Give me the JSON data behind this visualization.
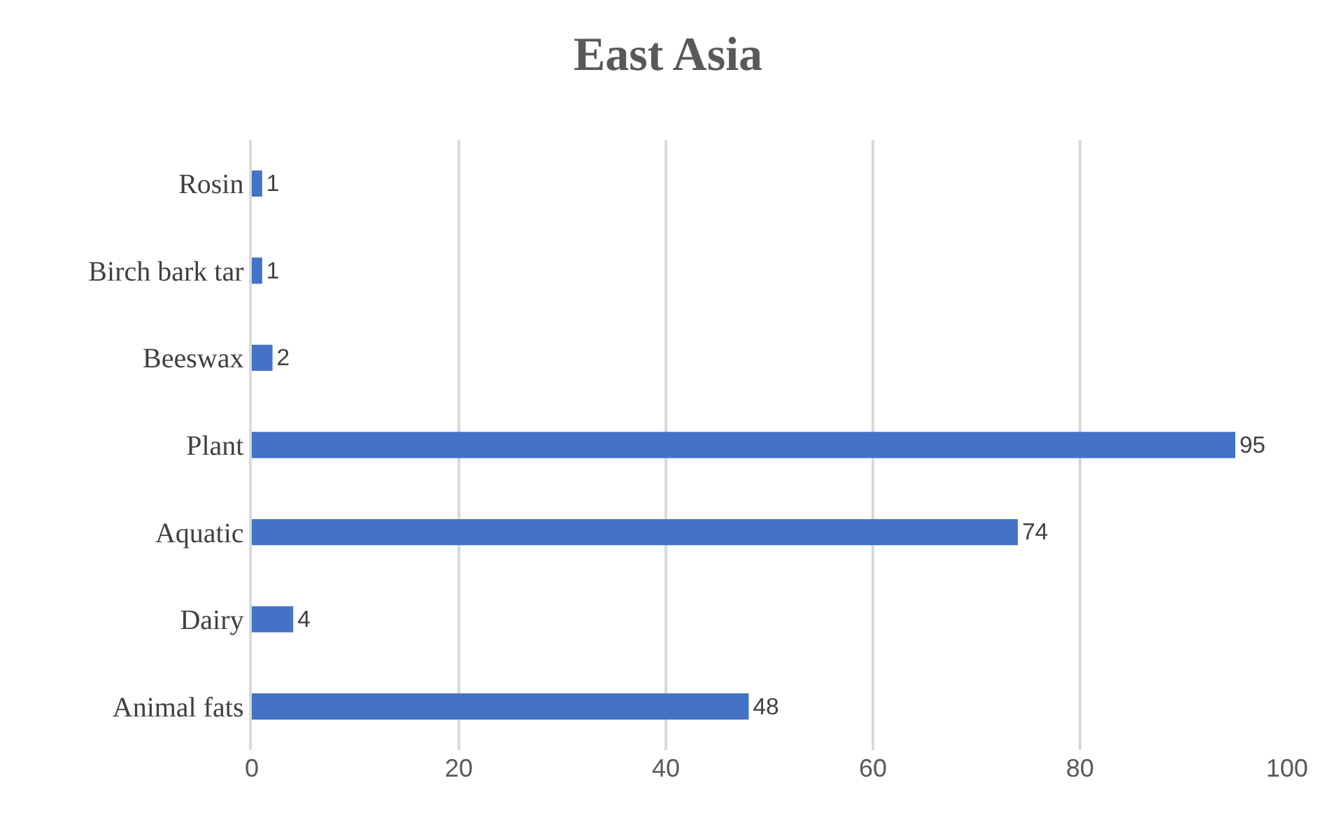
{
  "chart_data": {
    "type": "bar",
    "orientation": "horizontal",
    "title": "East Asia",
    "categories": [
      "Rosin",
      "Birch bark tar",
      "Beeswax",
      "Plant",
      "Aquatic",
      "Dairy",
      "Animal fats"
    ],
    "values": [
      1,
      1,
      2,
      95,
      74,
      4,
      48
    ],
    "color": "#4472c4",
    "xlim": [
      0,
      100
    ],
    "xticks": [
      0,
      20,
      40,
      60,
      80,
      100
    ],
    "grid": "x",
    "data_labels": true
  }
}
